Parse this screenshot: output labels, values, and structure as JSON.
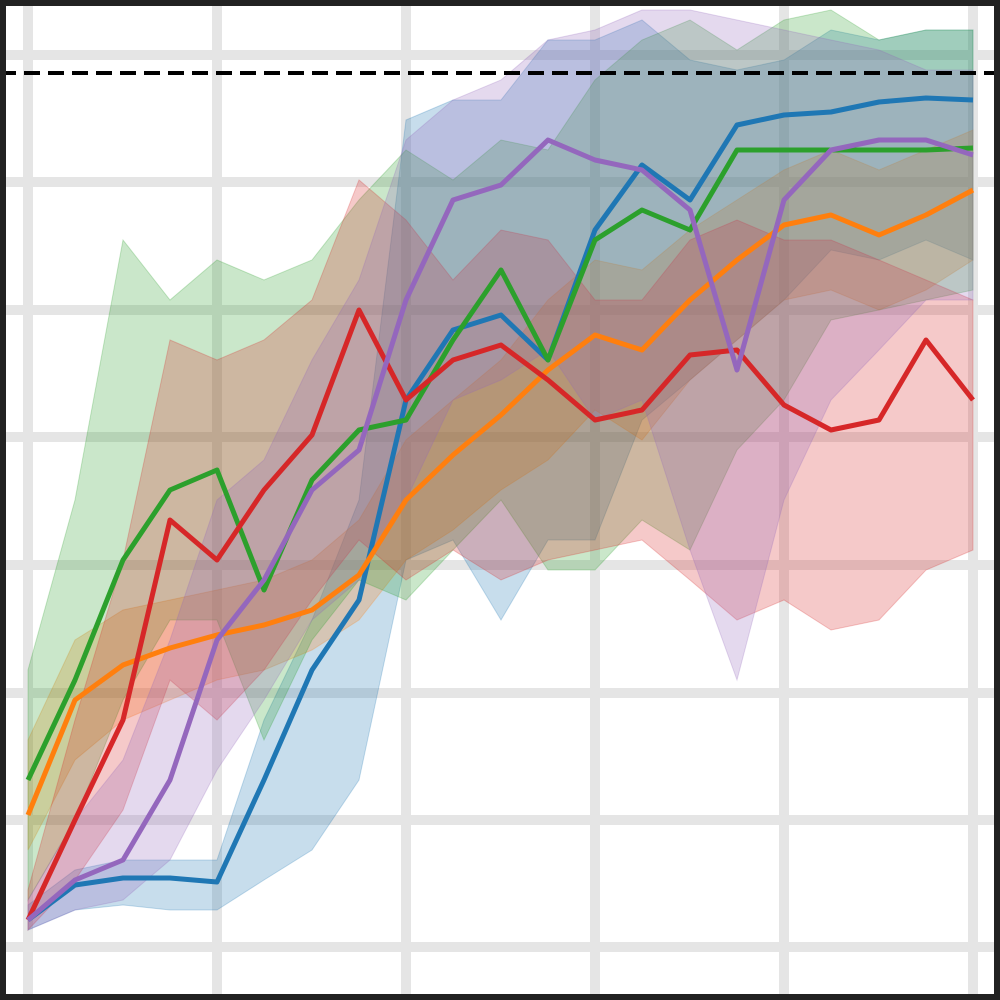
{
  "chart_data": {
    "type": "line",
    "x": [
      28,
      75,
      123,
      170,
      217,
      264,
      312,
      359,
      406,
      453,
      501,
      548,
      595,
      642,
      690,
      737,
      784,
      831,
      879,
      926,
      973
    ],
    "xlim": [
      0,
      1000
    ],
    "ylim": [
      0,
      1000
    ],
    "xticks": [
      28,
      217,
      406,
      595,
      784,
      973
    ],
    "yticks": [
      53,
      180,
      307,
      435,
      563,
      690,
      818,
      945
    ],
    "grid": true,
    "hline": 927,
    "band_opacity": 0.25,
    "series": [
      {
        "color": "#1f77b4",
        "values": [
          80,
          115,
          122,
          122,
          118,
          220,
          330,
          400,
          600,
          670,
          685,
          640,
          770,
          835,
          800,
          875,
          885,
          888,
          898,
          902,
          900
        ],
        "lower": [
          70,
          90,
          95,
          90,
          90,
          120,
          150,
          220,
          440,
          460,
          380,
          460,
          460,
          580,
          620,
          660,
          700,
          750,
          740,
          760,
          740
        ],
        "upper": [
          95,
          130,
          140,
          140,
          140,
          280,
          380,
          500,
          880,
          900,
          900,
          960,
          960,
          980,
          940,
          930,
          940,
          970,
          960,
          970,
          970
        ]
      },
      {
        "color": "#ff7f0e",
        "values": [
          185,
          300,
          335,
          352,
          365,
          375,
          390,
          425,
          500,
          545,
          585,
          630,
          665,
          650,
          700,
          740,
          775,
          785,
          765,
          785,
          810
        ],
        "lower": [
          150,
          240,
          280,
          300,
          320,
          330,
          350,
          380,
          440,
          470,
          510,
          540,
          590,
          560,
          620,
          660,
          700,
          710,
          690,
          710,
          740
        ],
        "upper": [
          260,
          360,
          390,
          400,
          410,
          420,
          440,
          480,
          560,
          600,
          640,
          700,
          740,
          730,
          770,
          800,
          830,
          850,
          830,
          850,
          870
        ]
      },
      {
        "color": "#2ca02c",
        "values": [
          220,
          320,
          440,
          510,
          530,
          410,
          520,
          570,
          580,
          660,
          730,
          640,
          760,
          790,
          770,
          850,
          850,
          850,
          850,
          850,
          852
        ],
        "lower": [
          100,
          180,
          300,
          380,
          380,
          260,
          360,
          420,
          400,
          450,
          500,
          430,
          430,
          480,
          450,
          550,
          600,
          680,
          690,
          700,
          710
        ],
        "upper": [
          330,
          500,
          760,
          700,
          740,
          720,
          740,
          800,
          850,
          820,
          860,
          850,
          920,
          960,
          980,
          950,
          980,
          990,
          960,
          970,
          970
        ]
      },
      {
        "color": "#d62728",
        "values": [
          80,
          180,
          280,
          480,
          440,
          510,
          565,
          690,
          600,
          640,
          655,
          620,
          580,
          590,
          645,
          650,
          595,
          570,
          580,
          660,
          600
        ],
        "lower": [
          70,
          120,
          190,
          320,
          280,
          330,
          400,
          460,
          420,
          450,
          420,
          440,
          450,
          460,
          420,
          380,
          400,
          370,
          380,
          430,
          450
        ],
        "upper": [
          110,
          280,
          440,
          660,
          640,
          660,
          700,
          820,
          780,
          720,
          770,
          760,
          700,
          700,
          760,
          780,
          760,
          760,
          740,
          720,
          700
        ]
      },
      {
        "color": "#9467bd",
        "values": [
          80,
          120,
          140,
          220,
          360,
          420,
          510,
          550,
          700,
          800,
          815,
          860,
          840,
          830,
          790,
          630,
          800,
          850,
          860,
          860,
          845
        ],
        "lower": [
          70,
          90,
          100,
          140,
          230,
          300,
          380,
          420,
          500,
          600,
          620,
          650,
          580,
          600,
          450,
          320,
          500,
          600,
          650,
          700,
          700
        ],
        "upper": [
          100,
          180,
          240,
          360,
          500,
          540,
          640,
          720,
          860,
          900,
          920,
          960,
          970,
          990,
          990,
          980,
          970,
          960,
          950,
          930,
          930
        ]
      }
    ]
  }
}
